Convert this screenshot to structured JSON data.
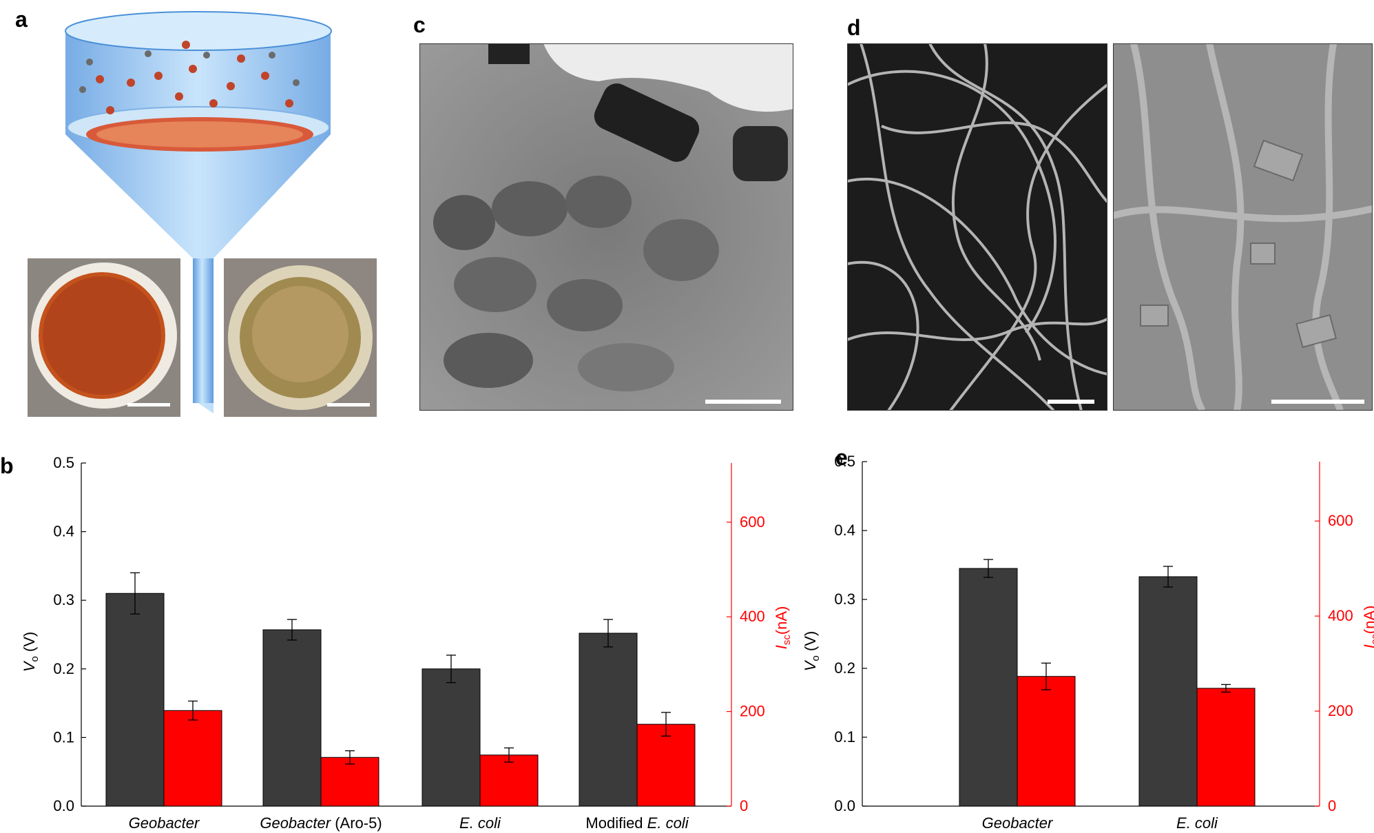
{
  "panels": {
    "a": "a",
    "b": "b",
    "c": "c",
    "d": "d",
    "e": "e"
  },
  "chart_data": [
    {
      "type": "bar",
      "panel": "b",
      "categories": [
        "Geobacter",
        "Geobacter (Aro-5)",
        "E. coli",
        "Modified E. coli"
      ],
      "category_parts": [
        [
          {
            "t": "Geobacter",
            "i": true
          }
        ],
        [
          {
            "t": "Geobacter",
            "i": true
          },
          {
            "t": " (Aro-5)",
            "i": false
          }
        ],
        [
          {
            "t": "E. coli",
            "i": true
          }
        ],
        [
          {
            "t": "Modified ",
            "i": false
          },
          {
            "t": "E. coli",
            "i": true
          }
        ]
      ],
      "series": [
        {
          "name": "Vo",
          "axis": "left",
          "color": "#3b3b3b",
          "values": [
            0.31,
            0.257,
            0.2,
            0.252
          ],
          "errors": [
            0.03,
            0.015,
            0.02,
            0.02
          ]
        },
        {
          "name": "Isc",
          "axis": "right",
          "color": "#ff0000",
          "values": [
            202,
            103,
            108,
            173
          ],
          "errors": [
            20,
            14,
            15,
            25
          ]
        }
      ],
      "ylabel_left": {
        "main": "V",
        "sub": "o",
        "unit": " (V)"
      },
      "ylabel_right": {
        "main": "I",
        "sub": "sc",
        "unit": "(nA)"
      },
      "ylim_left": [
        0,
        0.5
      ],
      "ylim_right": [
        0,
        725
      ],
      "yticks_left": [
        "0.0",
        "0.1",
        "0.2",
        "0.3",
        "0.4",
        "0.5"
      ],
      "yticks_right": [
        "0",
        "200",
        "400",
        "600"
      ]
    },
    {
      "type": "bar",
      "panel": "e",
      "categories": [
        "Geobacter",
        "E. coli"
      ],
      "category_parts": [
        [
          {
            "t": "Geobacter",
            "i": true
          }
        ],
        [
          {
            "t": "E. coli",
            "i": true
          }
        ]
      ],
      "series": [
        {
          "name": "Vo",
          "axis": "left",
          "color": "#3b3b3b",
          "values": [
            0.345,
            0.333
          ],
          "errors": [
            0.013,
            0.015
          ]
        },
        {
          "name": "Isc",
          "axis": "right",
          "color": "#ff0000",
          "values": [
            273,
            248
          ],
          "errors": [
            28,
            8
          ]
        }
      ],
      "ylabel_left": {
        "main": "V",
        "sub": "o",
        "unit": " (V)"
      },
      "ylabel_right": {
        "main": "I",
        "sub": "sc",
        "unit": "(nA)"
      },
      "ylim_left": [
        0,
        0.5
      ],
      "ylim_right": [
        0,
        725
      ],
      "yticks_left": [
        "0.0",
        "0.1",
        "0.2",
        "0.3",
        "0.4",
        "0.5"
      ],
      "yticks_right": [
        "0",
        "200",
        "400",
        "600"
      ]
    }
  ],
  "colors": {
    "dark_bar": "#3b3b3b",
    "red_bar": "#ff0000",
    "membrane": "#b83a12",
    "funnel": "#8fbfeb"
  }
}
